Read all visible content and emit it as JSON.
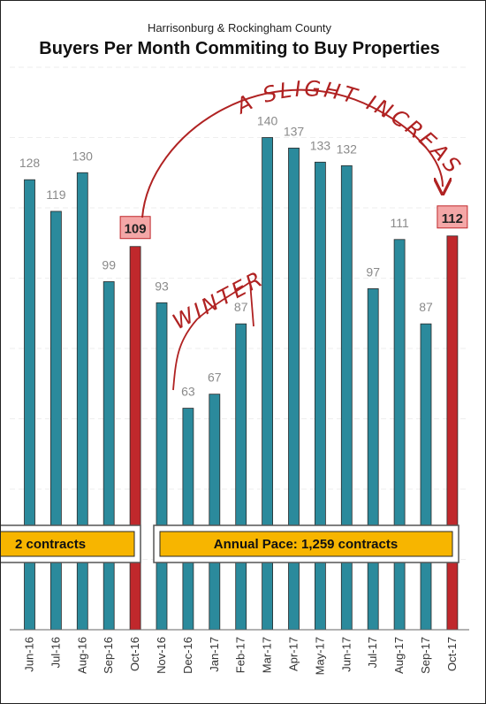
{
  "chart_data": {
    "type": "bar",
    "subtitle": "Harrisonburg & Rockingham County",
    "title": "Buyers Per Month Commiting to Buy Properties",
    "categories": [
      "Jun-16",
      "Jul-16",
      "Aug-16",
      "Sep-16",
      "Oct-16",
      "Nov-16",
      "Dec-16",
      "Jan-17",
      "Feb-17",
      "Mar-17",
      "Apr-17",
      "May-17",
      "Jun-17",
      "Jul-17",
      "Aug-17",
      "Sep-17",
      "Oct-17"
    ],
    "values": [
      128,
      119,
      130,
      99,
      109,
      93,
      63,
      67,
      87,
      140,
      137,
      133,
      132,
      97,
      111,
      87,
      112
    ],
    "highlighted": [
      "Oct-16",
      "Oct-17"
    ],
    "ylim": [
      0,
      160
    ],
    "grid": true,
    "colors": {
      "bar": "#2b8a9c",
      "highlight": "#c0282c",
      "highlight_label_bg": "#f4a7a7",
      "pace_box": "#f7b500"
    },
    "pace_boxes": [
      {
        "text": "2 contracts"
      },
      {
        "text": "Annual Pace: 1,259 contracts"
      }
    ],
    "annotations": [
      {
        "text": "A SLIGHT INCREASE"
      },
      {
        "text": "WINTER"
      }
    ]
  }
}
